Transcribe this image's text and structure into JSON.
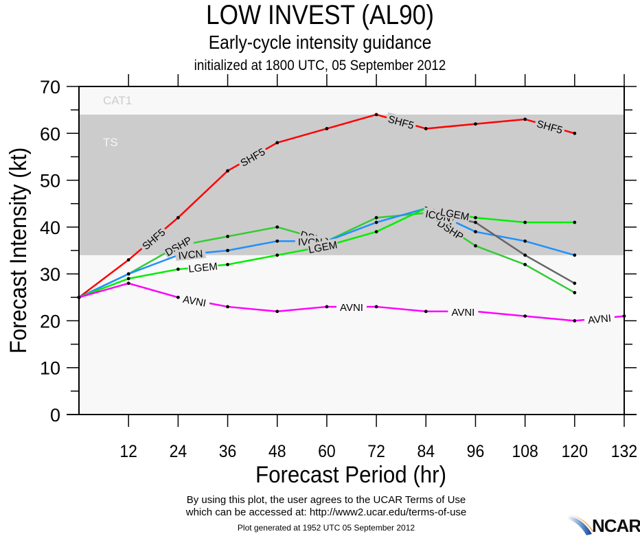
{
  "header": {
    "title": "LOW INVEST (AL90)",
    "subtitle": "Early-cycle intensity guidance",
    "init": "initialized at 1800 UTC, 05 September 2012"
  },
  "footer": {
    "terms_line1": "By using this plot, the user agrees to the UCAR Terms of Use",
    "terms_line2": "which can be accessed at: http://www2.ucar.edu/terms-of-use",
    "generated": "Plot generated at 1952 UTC   05 September 2012",
    "logo": "NCAR"
  },
  "chart_data": {
    "type": "line",
    "title": "LOW INVEST (AL90)",
    "subtitle": "Early-cycle intensity guidance",
    "xlabel": "Forecast Period (hr)",
    "ylabel": "Forecast Intensity (kt)",
    "xlim": [
      0,
      132
    ],
    "ylim": [
      0,
      70
    ],
    "xticks": [
      12,
      24,
      36,
      48,
      60,
      72,
      84,
      96,
      108,
      120,
      132
    ],
    "yticks": [
      0,
      10,
      20,
      30,
      40,
      50,
      60,
      70
    ],
    "grid": false,
    "bands": [
      {
        "label": "TS",
        "from": 34,
        "to": 64,
        "color": "#cccccc",
        "label_color": "#f5f5f5"
      },
      {
        "label": "CAT1",
        "from": 64,
        "to": 70,
        "color": "#f8f8f8",
        "label_color": "#cccccc"
      }
    ],
    "background_color": "#f8f8f8",
    "series": [
      {
        "name": "SHF5",
        "color": "#ff0000",
        "x": [
          0,
          12,
          24,
          36,
          48,
          60,
          72,
          84,
          96,
          108,
          120
        ],
        "y": [
          25,
          33,
          42,
          52,
          58,
          61,
          64,
          61,
          62,
          63,
          60
        ],
        "labels_at": [
          18,
          42,
          78,
          114
        ]
      },
      {
        "name": "DSHP",
        "color": "#33cc33",
        "x": [
          0,
          12,
          24,
          36,
          48,
          60,
          72,
          84,
          96,
          108,
          120
        ],
        "y": [
          25,
          30,
          36,
          38,
          40,
          37,
          42,
          43,
          36,
          32,
          26
        ],
        "labels_at": [
          24,
          57,
          90
        ]
      },
      {
        "name": "IVCN",
        "color": "#1e90ff",
        "x": [
          0,
          12,
          24,
          36,
          48,
          60,
          72,
          84,
          96,
          108,
          120
        ],
        "y": [
          25,
          30,
          34,
          35,
          37,
          37,
          41,
          44,
          39,
          37,
          34
        ],
        "labels_at": [
          27,
          56,
          88
        ]
      },
      {
        "name": "ICON",
        "color": "#666666",
        "x": [
          84,
          96,
          108,
          120
        ],
        "y": [
          43,
          41,
          34,
          28
        ],
        "labels_at": [
          87
        ]
      },
      {
        "name": "LGEM",
        "color": "#00ee00",
        "x": [
          0,
          12,
          24,
          36,
          48,
          60,
          72,
          84,
          96,
          108,
          120
        ],
        "y": [
          25,
          29,
          31,
          32,
          34,
          36,
          39,
          44,
          42,
          41,
          41
        ],
        "labels_at": [
          30,
          59,
          91
        ]
      },
      {
        "name": "AVNI",
        "color": "#ff00ff",
        "x": [
          0,
          12,
          24,
          36,
          48,
          60,
          72,
          84,
          96,
          108,
          120,
          132
        ],
        "y": [
          25,
          28,
          25,
          23,
          22,
          23,
          23,
          22,
          22,
          21,
          20,
          21
        ],
        "labels_at": [
          28,
          66,
          93,
          126
        ]
      }
    ]
  }
}
